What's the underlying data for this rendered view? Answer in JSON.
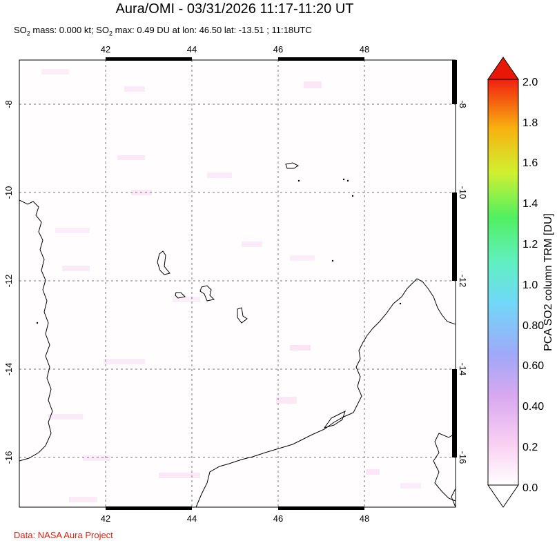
{
  "title": "Aura/OMI - 03/31/2026 11:17-11:20 UT",
  "subtitle": {
    "p1": "SO",
    "p1_sub": "2",
    "p2": " mass: 0.000 kt; SO",
    "p2_sub": "2",
    "p3": " max: 0.49 DU at lon: 46.50 lat: -13.51 ; 11:18UTC"
  },
  "credit": "Data: NASA Aura Project",
  "map": {
    "lon_ticks": [
      "42",
      "44",
      "46",
      "48"
    ],
    "lat_ticks": [
      "-8",
      "-10",
      "-12",
      "-14",
      "-16"
    ],
    "lon_range": [
      40,
      50.2
    ],
    "lat_range": [
      -17.2,
      -6.9
    ]
  },
  "colorbar": {
    "label": "PCA SO2 column TRM [DU]",
    "ticks": [
      "2.0",
      "1.8",
      "1.6",
      "1.4",
      "1.2",
      "1.0",
      "0.80",
      "0.60",
      "0.40",
      "0.2",
      "0.0"
    ],
    "range": [
      0,
      2.0
    ],
    "colors": [
      "#ffffff",
      "#f9c8f0",
      "#d9a8f0",
      "#9aa8f8",
      "#70d8f8",
      "#60f0c8",
      "#50f070",
      "#c0f030",
      "#f8e020",
      "#f8a010",
      "#f03010",
      "#e80000"
    ]
  }
}
